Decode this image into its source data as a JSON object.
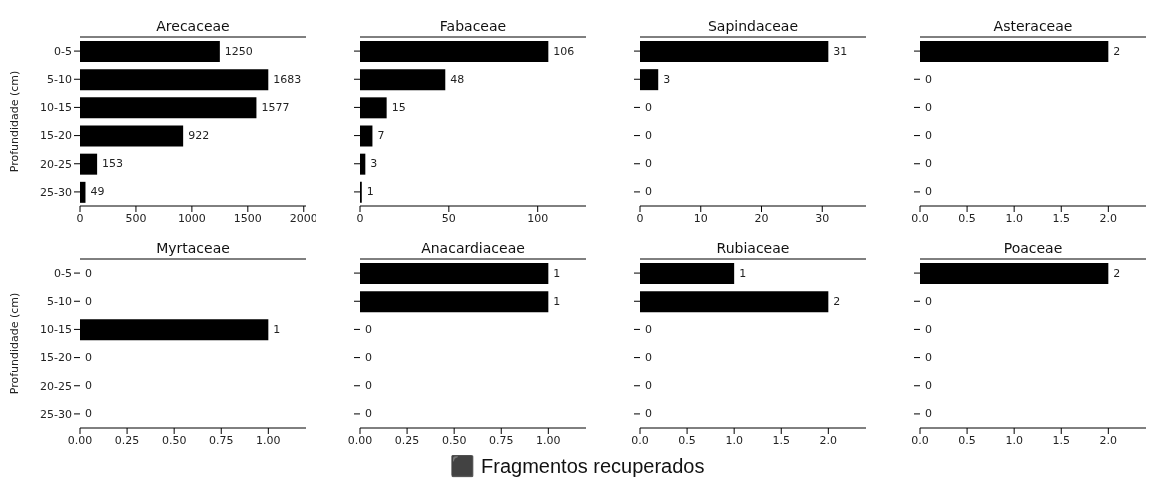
{
  "chart_data": [
    {
      "type": "bar",
      "orientation": "horizontal",
      "title": "Arecaceae",
      "ylabel": "Profundidade (cm)",
      "categories": [
        "0-5",
        "5-10",
        "10-15",
        "15-20",
        "20-25",
        "25-30"
      ],
      "values": [
        1250,
        1683,
        1577,
        922,
        153,
        49
      ],
      "color": "#000000",
      "xlim": [
        0,
        2020
      ],
      "xticks": [
        0,
        500,
        1000,
        1500,
        2000
      ],
      "data_labels": true,
      "annotations": [
        "⬛ Fragmentos recuperados"
      ]
    },
    {
      "type": "bar",
      "orientation": "horizontal",
      "title": "Fabaceae",
      "categories": [
        "0-5",
        "5-10",
        "10-15",
        "15-20",
        "20-25",
        "25-30"
      ],
      "values": [
        106,
        48,
        15,
        7,
        3,
        1
      ],
      "color": "#000000",
      "xlim": [
        0,
        127.2
      ],
      "xticks": [
        0,
        50,
        100
      ],
      "data_labels": true,
      "tick_labels": "x"
    },
    {
      "type": "bar",
      "orientation": "horizontal",
      "title": "Sapindaceae",
      "categories": [
        "0-5",
        "5-10",
        "10-15",
        "15-20",
        "20-25",
        "25-30"
      ],
      "values": [
        31,
        3,
        0,
        0,
        0,
        0
      ],
      "color": "#000000",
      "xlim": [
        0,
        37.2
      ],
      "xticks": [
        0,
        10,
        20,
        30
      ],
      "data_labels": true,
      "tick_labels": "x"
    },
    {
      "type": "bar",
      "orientation": "horizontal",
      "title": "Asteraceae",
      "categories": [
        "0-5",
        "5-10",
        "10-15",
        "15-20",
        "20-25",
        "25-30"
      ],
      "values": [
        2,
        0,
        0,
        0,
        0,
        0
      ],
      "color": "#000000",
      "xlim": [
        0,
        2.4
      ],
      "xticks": [
        {
          "value": 0,
          "label": "0.0"
        },
        {
          "value": 0.5,
          "label": "0.5"
        },
        {
          "value": 1,
          "label": "1.0"
        },
        {
          "value": 1.5,
          "label": "1.5"
        },
        {
          "value": 2,
          "label": "2.0"
        }
      ],
      "data_labels": true,
      "tick_labels": "x"
    },
    {
      "type": "bar",
      "orientation": "horizontal",
      "title": "Myrtaceae",
      "ylabel": "Profundidade (cm)",
      "categories": [
        "0-5",
        "5-10",
        "10-15",
        "15-20",
        "20-25",
        "25-30"
      ],
      "values": [
        0,
        0,
        1,
        0,
        0,
        0
      ],
      "color": "#000000",
      "xlim": [
        0,
        1.2
      ],
      "xticks": [
        {
          "value": 0,
          "label": "0.00"
        },
        {
          "value": 0.25,
          "label": "0.25"
        },
        {
          "value": 0.5,
          "label": "0.50"
        },
        {
          "value": 0.75,
          "label": "0.75"
        },
        {
          "value": 1,
          "label": "1.00"
        }
      ],
      "data_labels": true
    },
    {
      "type": "bar",
      "orientation": "horizontal",
      "title": "Anacardiaceae",
      "categories": [
        "0-5",
        "5-10",
        "10-15",
        "15-20",
        "20-25",
        "25-30"
      ],
      "values": [
        1,
        1,
        0,
        0,
        0,
        0
      ],
      "color": "#000000",
      "xlim": [
        0,
        1.2
      ],
      "xticks": [
        {
          "value": 0,
          "label": "0.00"
        },
        {
          "value": 0.25,
          "label": "0.25"
        },
        {
          "value": 0.5,
          "label": "0.50"
        },
        {
          "value": 0.75,
          "label": "0.75"
        },
        {
          "value": 1,
          "label": "1.00"
        }
      ],
      "data_labels": true,
      "tick_labels": "x"
    },
    {
      "type": "bar",
      "orientation": "horizontal",
      "title": "Rubiaceae",
      "categories": [
        "0-5",
        "5-10",
        "10-15",
        "15-20",
        "20-25",
        "25-30"
      ],
      "values": [
        1,
        2,
        0,
        0,
        0,
        0
      ],
      "color": "#000000",
      "xlim": [
        0,
        2.4
      ],
      "xticks": [
        {
          "value": 0,
          "label": "0.0"
        },
        {
          "value": 0.5,
          "label": "0.5"
        },
        {
          "value": 1,
          "label": "1.0"
        },
        {
          "value": 1.5,
          "label": "1.5"
        },
        {
          "value": 2,
          "label": "2.0"
        }
      ],
      "data_labels": true,
      "tick_labels": "x"
    },
    {
      "type": "bar",
      "orientation": "horizontal",
      "title": "Poaceae",
      "categories": [
        "0-5",
        "5-10",
        "10-15",
        "15-20",
        "20-25",
        "25-30"
      ],
      "values": [
        2,
        0,
        0,
        0,
        0,
        0
      ],
      "color": "#000000",
      "xlim": [
        0,
        2.4
      ],
      "xticks": [
        {
          "value": 0,
          "label": "0.0"
        },
        {
          "value": 0.5,
          "label": "0.5"
        },
        {
          "value": 1,
          "label": "1.0"
        },
        {
          "value": 1.5,
          "label": "1.5"
        },
        {
          "value": 2,
          "label": "2.0"
        }
      ],
      "data_labels": true,
      "tick_labels": "x"
    }
  ]
}
